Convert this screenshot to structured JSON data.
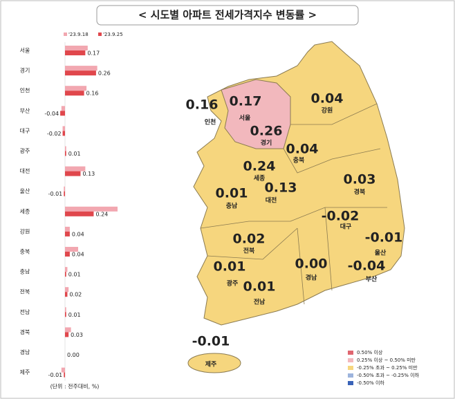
{
  "chart_data": {
    "type": "bar",
    "orientation": "horizontal",
    "title": "< 시도별 아파트 전세가격지수 변동률 >",
    "categories": [
      "서울",
      "경기",
      "인천",
      "부산",
      "대구",
      "광주",
      "대전",
      "울산",
      "세종",
      "강원",
      "충북",
      "충남",
      "전북",
      "전남",
      "경북",
      "경남",
      "제주"
    ],
    "series": [
      {
        "name": "'23.9.18",
        "color": "#f2a7b0",
        "values": [
          0.19,
          0.27,
          0.18,
          -0.03,
          -0.02,
          0.01,
          0.17,
          -0.01,
          0.44,
          0.04,
          0.11,
          0.02,
          0.03,
          0.01,
          0.05,
          0,
          -0.03
        ]
      },
      {
        "name": "'23.9.25",
        "color": "#e0474c",
        "values": [
          0.17,
          0.26,
          0.16,
          -0.04,
          -0.02,
          0.01,
          0.13,
          -0.01,
          0.24,
          0.04,
          0.04,
          0.01,
          0.02,
          0.01,
          0.03,
          0,
          -0.01
        ],
        "value_labels": [
          "0.17",
          "0.26",
          "0.16",
          "-0.04",
          "-0.02",
          "0.01",
          "0.13",
          "-0.01",
          "0.24",
          "0.04",
          "0.04",
          "0.01",
          "0.02",
          "0.01",
          "0.03",
          "0.00",
          "-0.01"
        ]
      }
    ],
    "unit_note": "(단위 : 전주대비, %)"
  },
  "map": {
    "legend": [
      {
        "label": "0.50% 이상",
        "color": "#e06670"
      },
      {
        "label": "0.25% 이상 ~ 0.50% 미만",
        "color": "#f2b8bd"
      },
      {
        "label": "-0.25% 초과 ~ 0.25% 미만",
        "color": "#f6d67e"
      },
      {
        "label": "-0.50% 초과 ~ -0.25% 이하",
        "color": "#9db4dd"
      },
      {
        "label": "-0.50% 이하",
        "color": "#3a63b8"
      }
    ],
    "regions": [
      {
        "name": "인천",
        "label": "0.16"
      },
      {
        "name": "서울",
        "label": "0.17"
      },
      {
        "name": "경기",
        "label": "0.26"
      },
      {
        "name": "강원",
        "label": "0.04"
      },
      {
        "name": "충북",
        "label": "0.04"
      },
      {
        "name": "세종",
        "label": "0.24"
      },
      {
        "name": "대전",
        "label": "0.13"
      },
      {
        "name": "충남",
        "label": "0.01"
      },
      {
        "name": "경북",
        "label": "0.03"
      },
      {
        "name": "대구",
        "label": "-0.02"
      },
      {
        "name": "울산",
        "label": "-0.01"
      },
      {
        "name": "전북",
        "label": "0.02"
      },
      {
        "name": "광주",
        "label": "0.01"
      },
      {
        "name": "전남",
        "label": "0.01"
      },
      {
        "name": "경남",
        "label": "0.00"
      },
      {
        "name": "부산",
        "label": "-0.04"
      },
      {
        "name": "제주",
        "label": "-0.01"
      }
    ]
  }
}
